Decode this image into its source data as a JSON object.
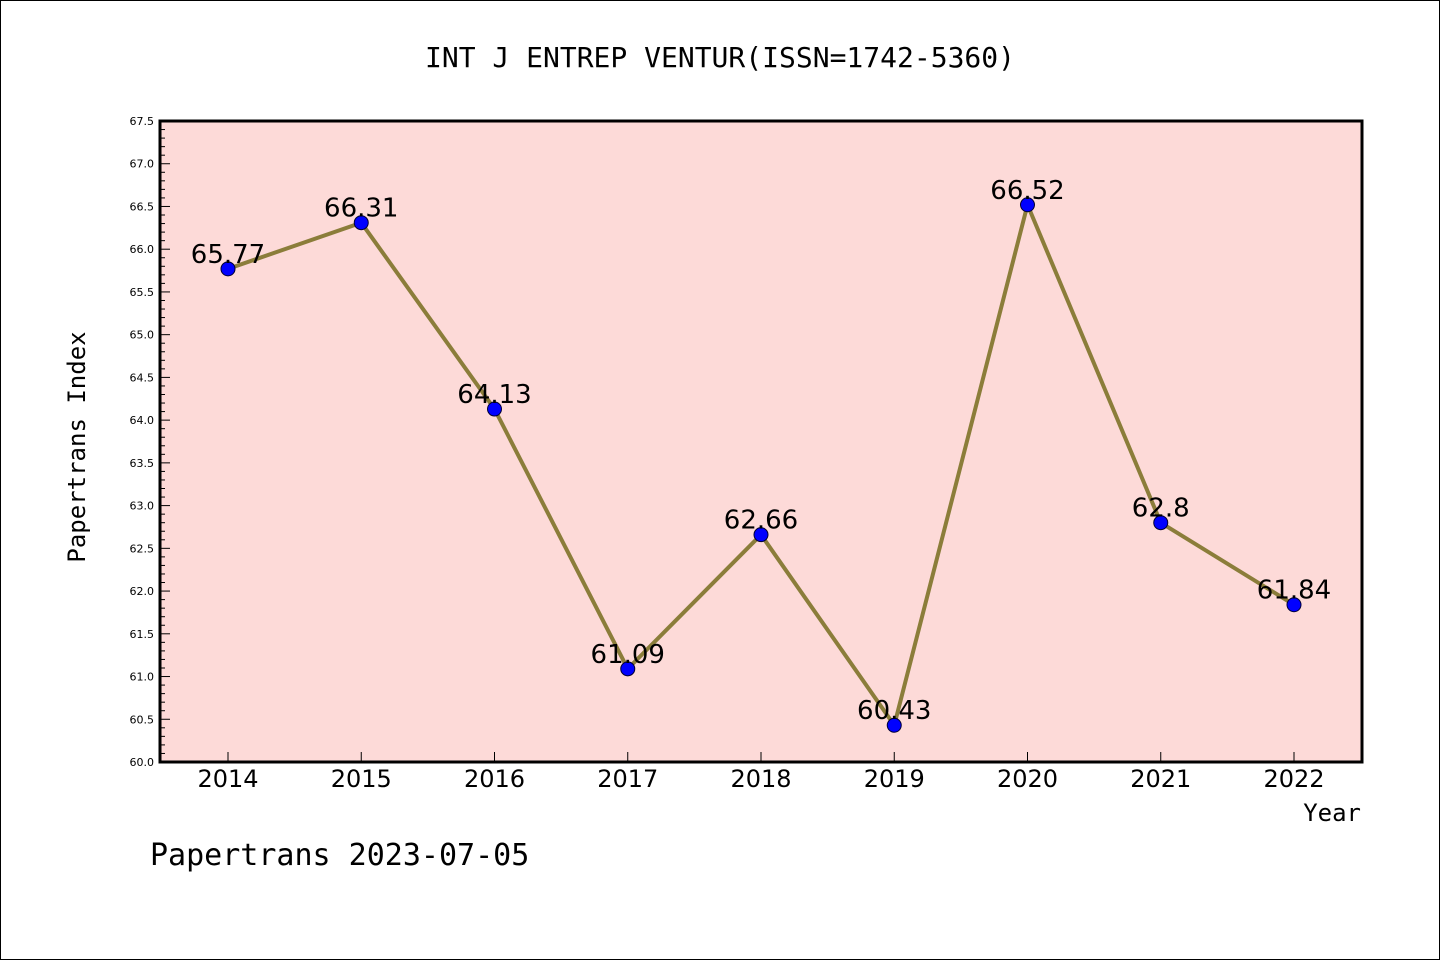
{
  "chart_data": {
    "type": "line",
    "title": "INT J ENTREP VENTUR(ISSN=1742-5360)",
    "xlabel": "Year",
    "ylabel": "Papertrans Index",
    "x": [
      "2014",
      "2015",
      "2016",
      "2017",
      "2018",
      "2019",
      "2020",
      "2021",
      "2022"
    ],
    "series": [
      {
        "values": [
          65.77,
          66.31,
          64.13,
          61.09,
          62.66,
          60.43,
          66.52,
          62.8,
          61.84
        ],
        "labels": [
          "65.77",
          "66.31",
          "64.13",
          "61.09",
          "62.66",
          "60.43",
          "66.52",
          "62.8",
          "61.84"
        ],
        "line_color": "#8B7D3A",
        "marker_color": "#0000FF"
      }
    ],
    "ylim": [
      60.0,
      67.5
    ],
    "yticks": [
      "60.0",
      "60.5",
      "61.0",
      "61.5",
      "62.0",
      "62.5",
      "63.0",
      "63.5",
      "64.0",
      "64.5",
      "65.0",
      "65.5",
      "66.0",
      "66.5",
      "67.0",
      "67.5"
    ],
    "plot_background": "#FDDAD8",
    "grid": false,
    "legend": "none"
  },
  "footer": {
    "text": "Papertrans 2023-07-05"
  }
}
